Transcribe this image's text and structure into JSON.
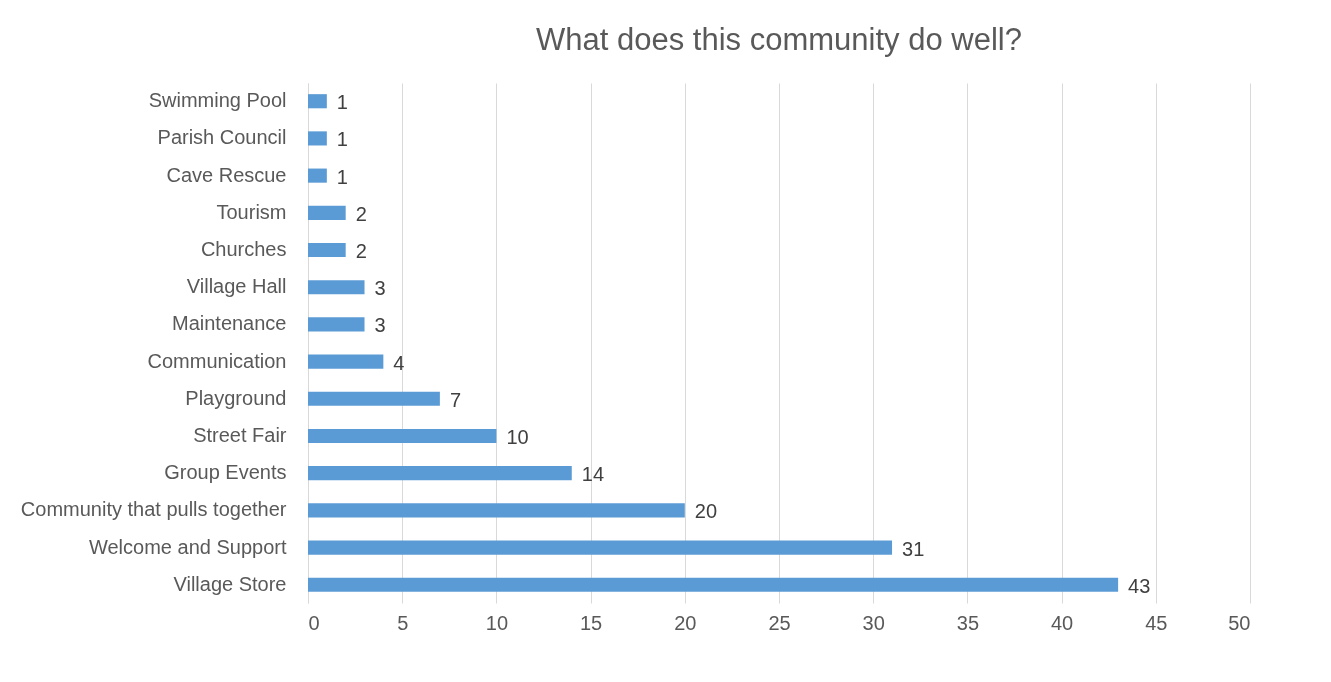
{
  "chart_data": {
    "type": "bar",
    "orientation": "horizontal",
    "title": "What does this community do well?",
    "categories": [
      "Swimming Pool",
      "Parish Council",
      "Cave Rescue",
      "Tourism",
      "Churches",
      "Village Hall",
      "Maintenance",
      "Communication",
      "Playground",
      "Street Fair",
      "Group Events",
      "Community that pulls together",
      "Welcome and Support",
      "Village Store"
    ],
    "values": [
      1,
      1,
      1,
      2,
      2,
      3,
      3,
      4,
      7,
      10,
      14,
      20,
      31,
      43
    ],
    "color": "#5b9bd5",
    "xlim": [
      0,
      50
    ],
    "xticks": [
      0,
      5,
      10,
      15,
      20,
      25,
      30,
      35,
      40,
      45,
      50
    ],
    "grid": "x",
    "data_labels": true
  }
}
